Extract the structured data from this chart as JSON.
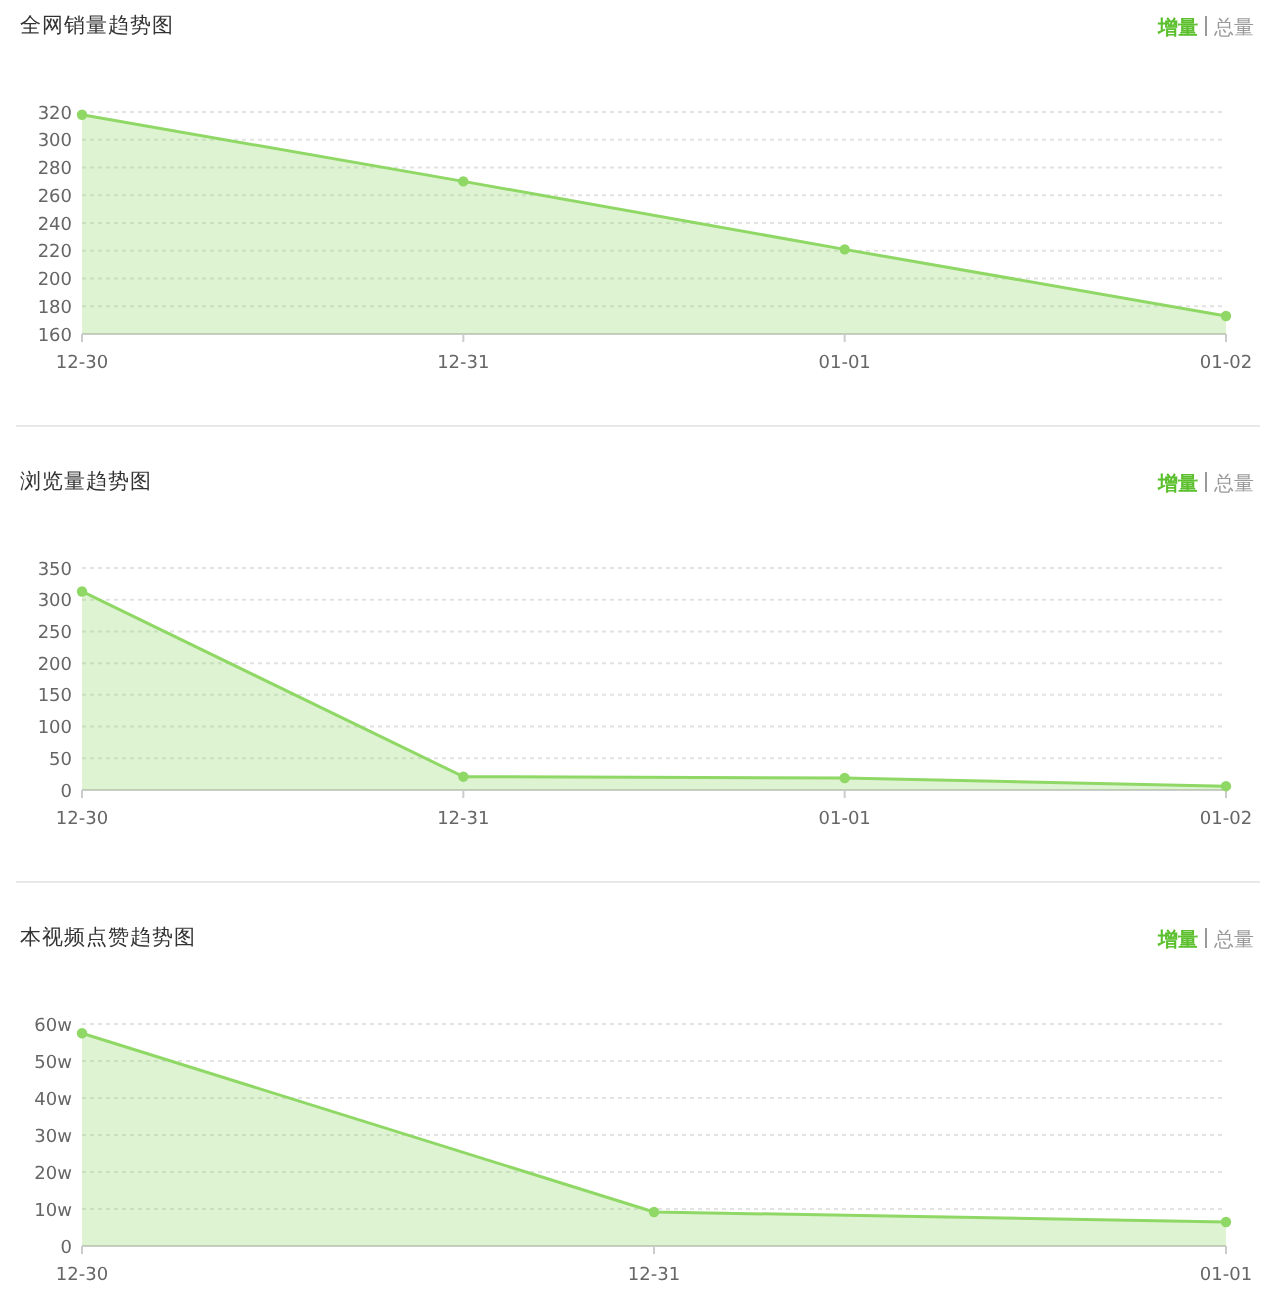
{
  "chart_data": [
    {
      "type": "area",
      "title": "全网销量趋势图",
      "annotations": [
        "增量",
        "总量"
      ],
      "categories": [
        "12-30",
        "12-31",
        "01-01",
        "01-02"
      ],
      "values": [
        318,
        270,
        221,
        173
      ],
      "color": "#8fd866",
      "ylim": [
        160,
        320
      ],
      "yticks": [
        160,
        180,
        200,
        220,
        240,
        260,
        280,
        300,
        320
      ],
      "grid": "y",
      "marker": "circle",
      "line_style": "solid"
    },
    {
      "type": "area",
      "title": "浏览量趋势图",
      "annotations": [
        "增量",
        "总量"
      ],
      "categories": [
        "12-30",
        "12-31",
        "01-01",
        "01-02"
      ],
      "values": [
        313,
        21,
        19,
        6
      ],
      "color": "#8fd866",
      "ylim": [
        0,
        350
      ],
      "yticks": [
        0,
        50,
        100,
        150,
        200,
        250,
        300,
        350
      ],
      "grid": "y",
      "marker": "circle",
      "line_style": "solid"
    },
    {
      "type": "area",
      "title": "本视频点赞趋势图",
      "annotations": [
        "增量",
        "总量"
      ],
      "categories": [
        "12-30",
        "12-31",
        "01-01"
      ],
      "values": [
        57.5,
        9.2,
        6.5
      ],
      "color": "#8fd866",
      "ylim": [
        0,
        60
      ],
      "yticks": [
        0,
        {
          "value": 10,
          "label": "10w"
        },
        {
          "value": 20,
          "label": "20w"
        },
        {
          "value": 30,
          "label": "30w"
        },
        {
          "value": 40,
          "label": "40w"
        },
        {
          "value": 50,
          "label": "50w"
        },
        {
          "value": 60,
          "label": "60w"
        }
      ],
      "grid": "y",
      "marker": "circle",
      "line_style": "solid"
    }
  ]
}
